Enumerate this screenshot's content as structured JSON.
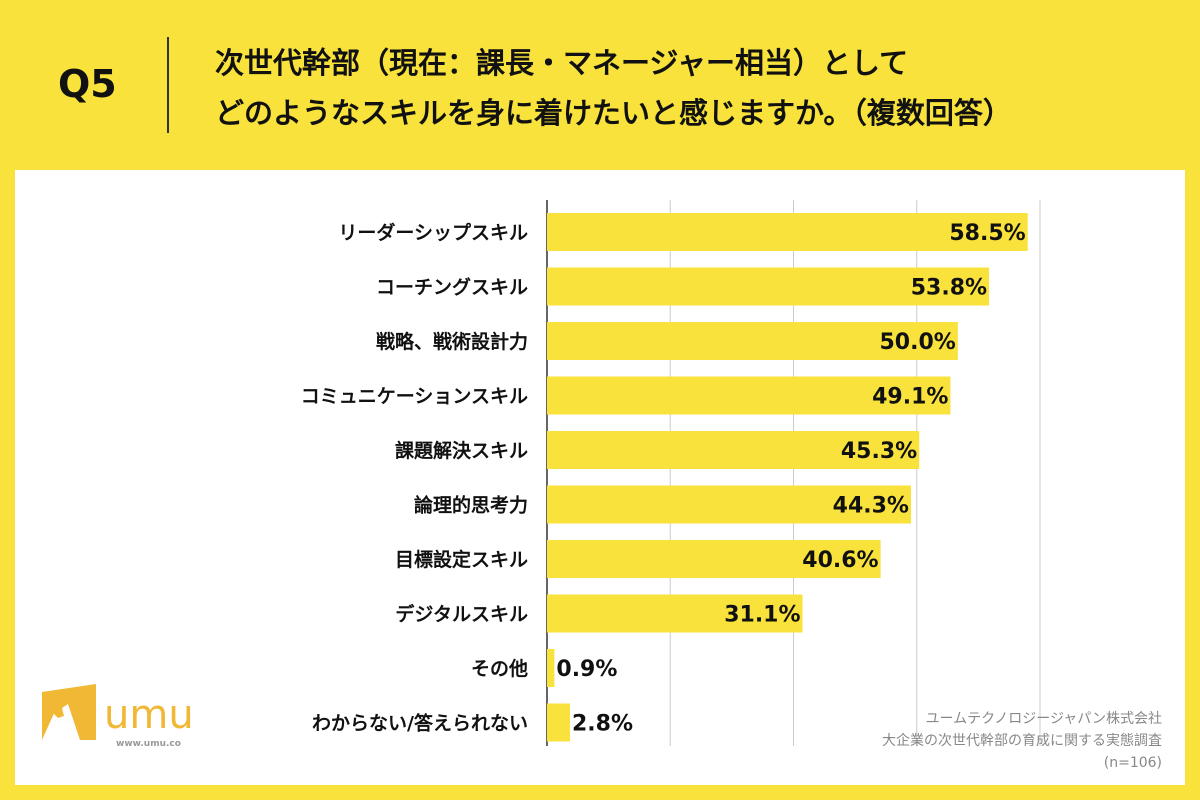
{
  "header": {
    "question": "Q5",
    "title_line1": "次世代幹部（現在：課長・マネージャー相当）として",
    "title_line2": "どのようなスキルを身に着けたいと感じますか。（複数回答）"
  },
  "chart_data": {
    "type": "bar",
    "orientation": "horizontal",
    "categories": [
      "リーダーシップスキル",
      "コーチングスキル",
      "戦略、戦術設計力",
      "コミュニケーションスキル",
      "課題解決スキル",
      "論理的思考力",
      "目標設定スキル",
      "デジタルスキル",
      "その他",
      "わからない/答えられない"
    ],
    "values": [
      58.5,
      53.8,
      50.0,
      49.1,
      45.3,
      44.3,
      40.6,
      31.1,
      0.9,
      2.8
    ],
    "data_labels": [
      "58.5%",
      "53.8%",
      "50.0%",
      "49.1%",
      "45.3%",
      "44.3%",
      "40.6%",
      "31.1%",
      "0.9%",
      "2.8%"
    ],
    "xlim": [
      0,
      60
    ],
    "grid_x": [
      15,
      30,
      45,
      60
    ],
    "grid": true,
    "bar_color": "#f8e23b",
    "unit": "%"
  },
  "footer": {
    "line1": "ユームテクノロジージャパン株式会社",
    "line2": "大企業の次世代幹部の育成に関する実態調査",
    "line3": "(n=106)"
  },
  "logo": {
    "text": "umu",
    "url_text": "www.umu.co",
    "color": "#f0b834"
  },
  "colors": {
    "background": "#f8e23b",
    "panel": "#ffffff"
  }
}
